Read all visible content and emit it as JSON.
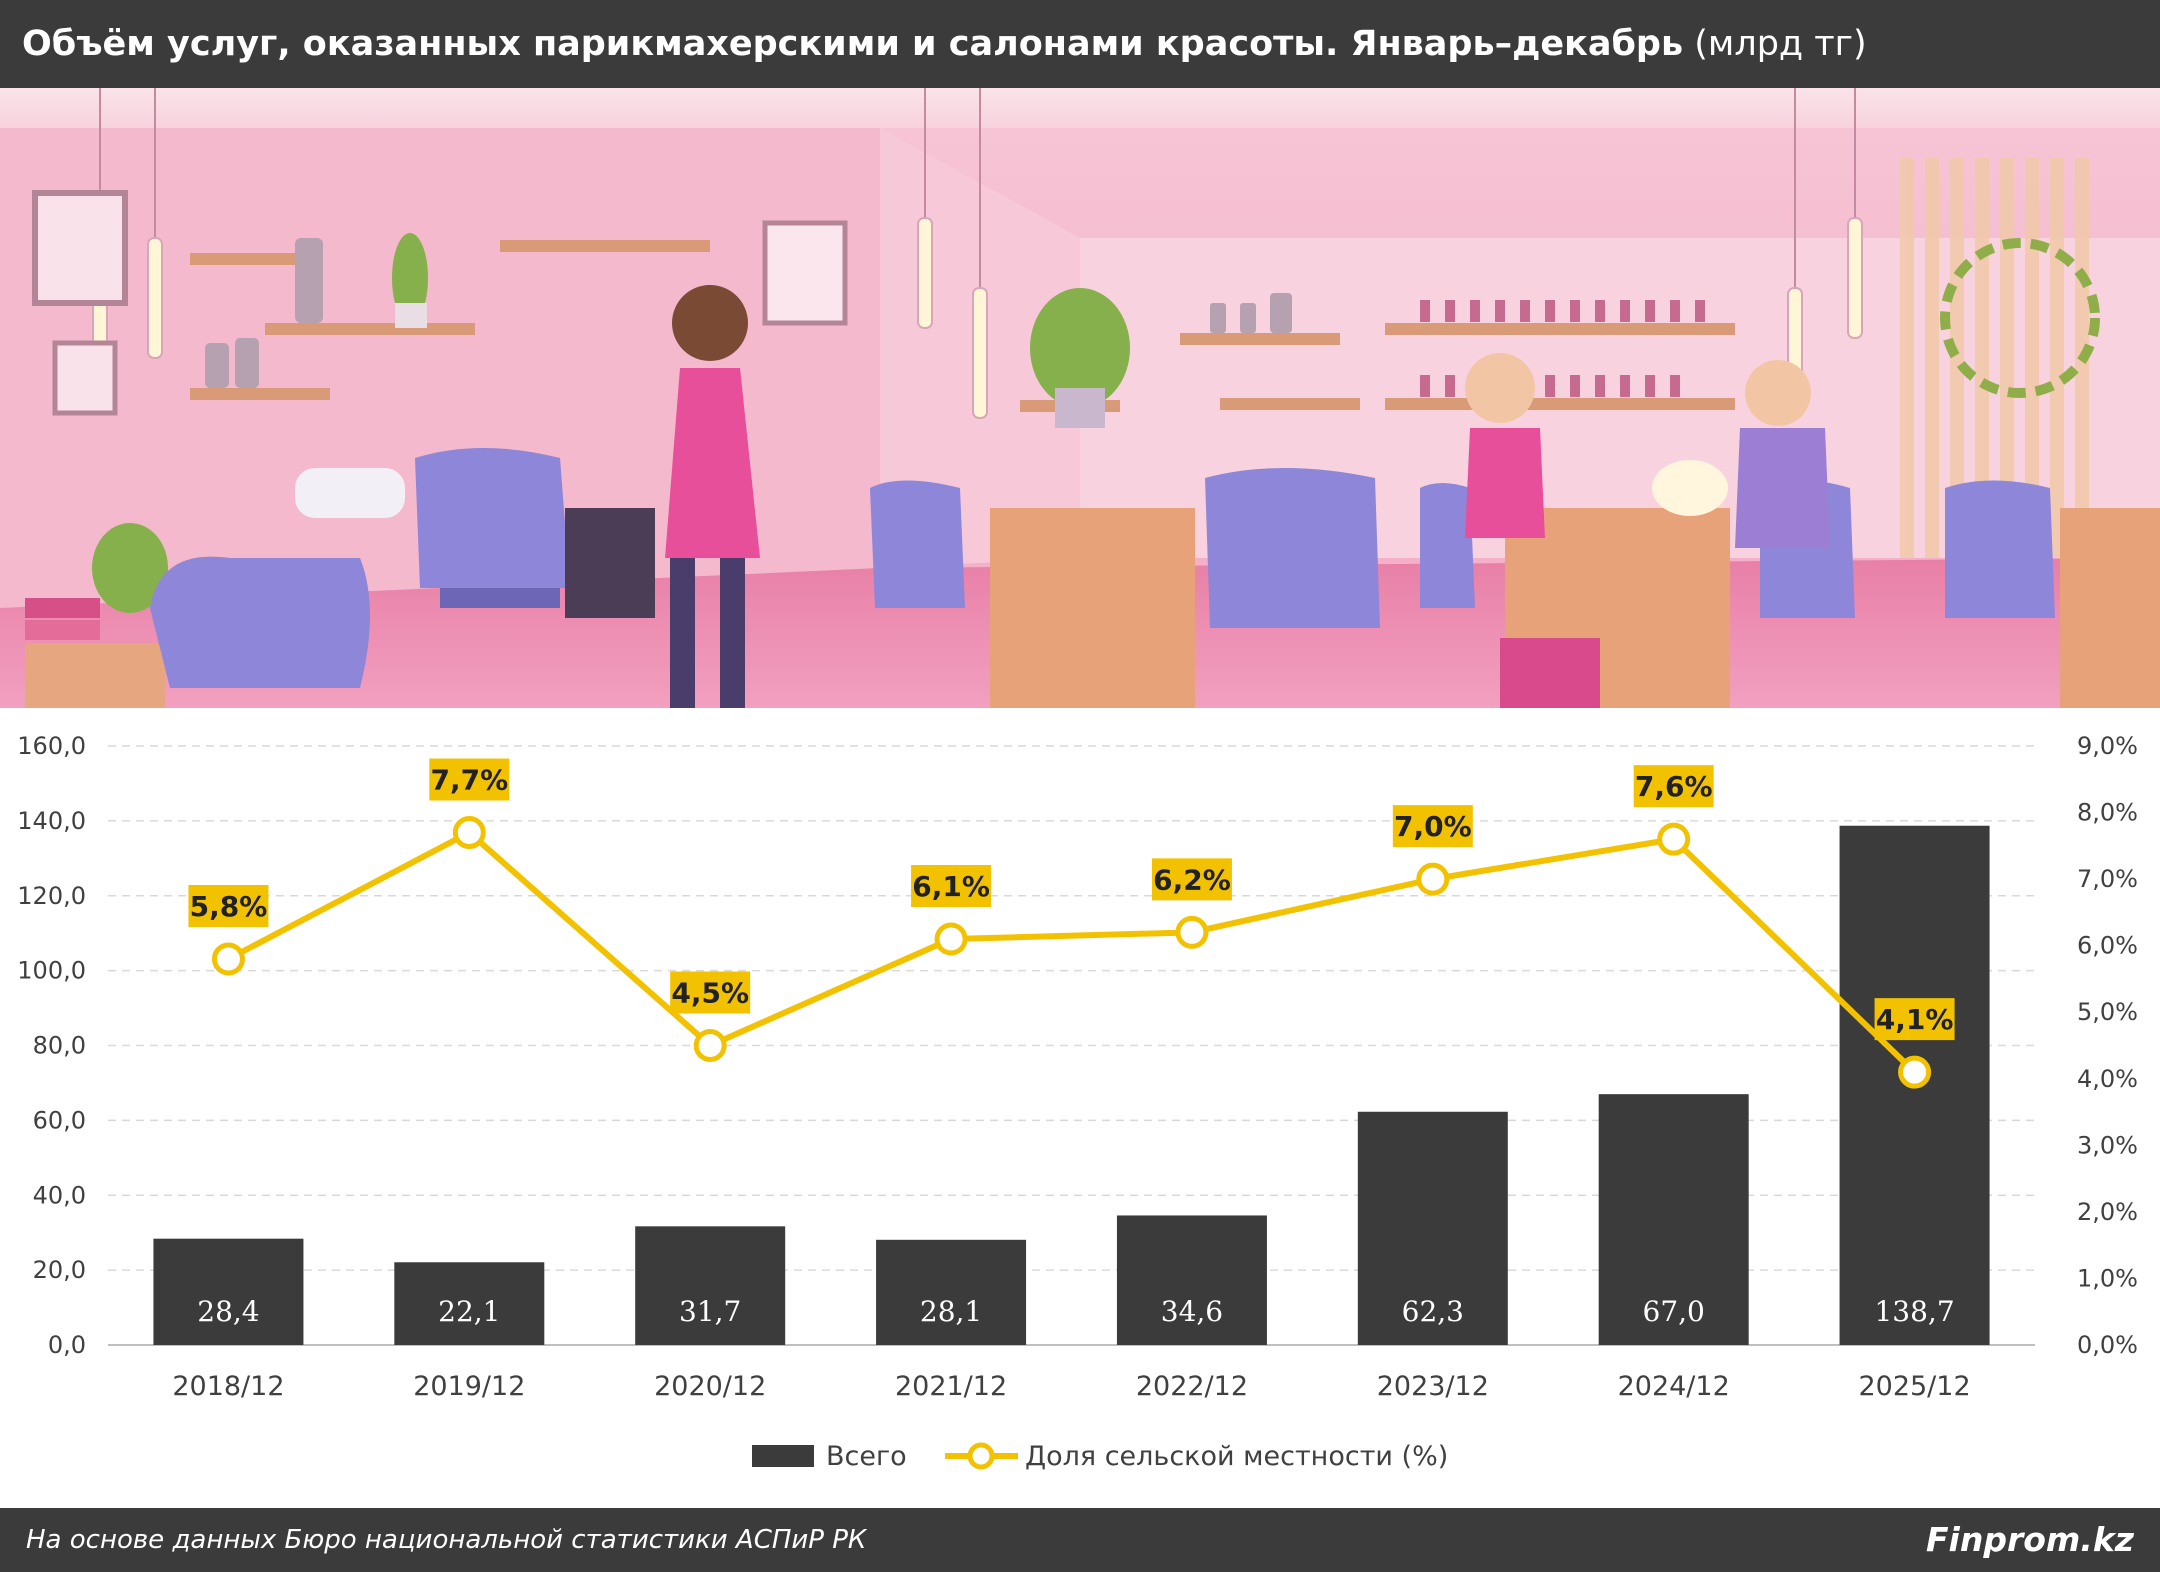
{
  "header": {
    "title_main": "Объём услуг, оказанных парикмахерскими и салонами красоты. Январь–декабрь",
    "title_unit": "(млрд тг)"
  },
  "illustration": {
    "subject": "beauty-salon-interior"
  },
  "chart_data": {
    "type": "bar+line",
    "categories": [
      "2018/12",
      "2019/12",
      "2020/12",
      "2021/12",
      "2022/12",
      "2023/12",
      "2024/12",
      "2025/12"
    ],
    "series": [
      {
        "name": "Всего",
        "type": "bar",
        "axis": "left",
        "color": "#3b3b3b",
        "values": [
          28.4,
          22.1,
          31.7,
          28.1,
          34.6,
          62.3,
          67.0,
          138.7
        ],
        "labels": [
          "28,4",
          "22,1",
          "31,7",
          "28,1",
          "34,6",
          "62,3",
          "67,0",
          "138,7"
        ]
      },
      {
        "name": "Доля сельской местности (%)",
        "type": "line",
        "axis": "right",
        "color": "#f2c200",
        "values": [
          5.8,
          7.7,
          4.5,
          6.1,
          6.2,
          7.0,
          7.6,
          4.1
        ],
        "labels": [
          "5,8%",
          "7,7%",
          "4,5%",
          "6,1%",
          "6,2%",
          "7,0%",
          "7,6%",
          "4,1%"
        ]
      }
    ],
    "y_left": {
      "min": 0,
      "max": 160,
      "ticks": [
        0,
        20,
        40,
        60,
        80,
        100,
        120,
        140,
        160
      ],
      "tick_labels": [
        "0,0",
        "20,0",
        "40,0",
        "60,0",
        "80,0",
        "100,0",
        "120,0",
        "140,0",
        "160,0"
      ]
    },
    "y_right": {
      "min": 0,
      "max": 9,
      "ticks": [
        0,
        1,
        2,
        3,
        4,
        5,
        6,
        7,
        8,
        9
      ],
      "tick_labels": [
        "0,0%",
        "1,0%",
        "2,0%",
        "3,0%",
        "4,0%",
        "5,0%",
        "6,0%",
        "7,0%",
        "8,0%",
        "9,0%"
      ]
    },
    "grid": "horizontal dashed",
    "legend": "bottom-center"
  },
  "footer": {
    "source": "На основе данных Бюро национальной статистики АСПиР РК",
    "brand": "Finprom.kz"
  }
}
